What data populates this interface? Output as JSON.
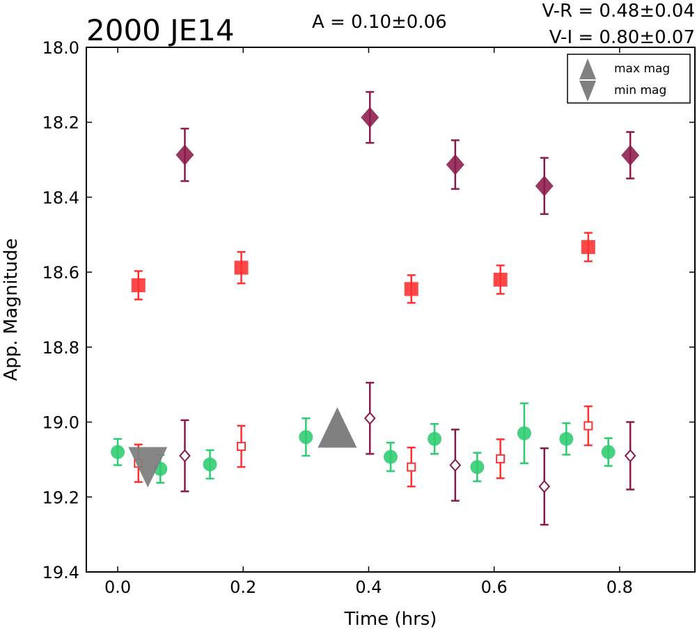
{
  "chart_data": {
    "type": "scatter",
    "title": "2000 JE14",
    "xlabel": "Time (hrs)",
    "ylabel": "App. Magnitude",
    "xlim": [
      -0.05,
      0.92
    ],
    "ylim": [
      19.4,
      18.0
    ],
    "y_inverted": true,
    "x_ticks": [
      "0.0",
      "0.2",
      "0.4",
      "0.6",
      "0.8"
    ],
    "y_ticks": [
      "18.0",
      "18.2",
      "18.4",
      "18.6",
      "18.8",
      "19.0",
      "19.2",
      "19.4"
    ],
    "annotations": {
      "amplitude": "A  = 0.10±0.06",
      "color_vr": "V-R = 0.48±0.04",
      "color_vi": "V-I  = 0.80±0.07"
    },
    "legend": {
      "position": "top-right",
      "entries": [
        "max mag",
        "min mag"
      ]
    },
    "series": [
      {
        "marker": "circle",
        "filled": true,
        "color": "#2ecc71",
        "points": [
          {
            "x": 0.0,
            "y": 19.08,
            "err": 0.035
          },
          {
            "x": 0.068,
            "y": 19.125,
            "err": 0.037
          },
          {
            "x": 0.147,
            "y": 19.113,
            "err": 0.038
          },
          {
            "x": 0.3,
            "y": 19.04,
            "err": 0.05
          },
          {
            "x": 0.435,
            "y": 19.093,
            "err": 0.038
          },
          {
            "x": 0.505,
            "y": 19.045,
            "err": 0.04
          },
          {
            "x": 0.573,
            "y": 19.12,
            "err": 0.038
          },
          {
            "x": 0.648,
            "y": 19.03,
            "err": 0.08
          },
          {
            "x": 0.715,
            "y": 19.045,
            "err": 0.042
          },
          {
            "x": 0.782,
            "y": 19.08,
            "err": 0.037
          }
        ]
      },
      {
        "marker": "square",
        "filled": true,
        "color": "#ff3030",
        "points": [
          {
            "x": 0.033,
            "y": 18.635,
            "err": 0.038
          },
          {
            "x": 0.197,
            "y": 18.588,
            "err": 0.042
          },
          {
            "x": 0.468,
            "y": 18.645,
            "err": 0.037
          },
          {
            "x": 0.61,
            "y": 18.62,
            "err": 0.038
          },
          {
            "x": 0.75,
            "y": 18.533,
            "err": 0.038
          }
        ]
      },
      {
        "marker": "square",
        "filled": false,
        "color": "#ff3030",
        "points": [
          {
            "x": 0.033,
            "y": 19.11,
            "err": 0.05
          },
          {
            "x": 0.197,
            "y": 19.065,
            "err": 0.055
          },
          {
            "x": 0.468,
            "y": 19.12,
            "err": 0.052
          },
          {
            "x": 0.61,
            "y": 19.098,
            "err": 0.052
          },
          {
            "x": 0.75,
            "y": 19.01,
            "err": 0.052
          }
        ]
      },
      {
        "marker": "diamond",
        "filled": true,
        "color": "#8b1a4b",
        "points": [
          {
            "x": 0.107,
            "y": 18.287,
            "err": 0.07
          },
          {
            "x": 0.402,
            "y": 18.187,
            "err": 0.068
          },
          {
            "x": 0.538,
            "y": 18.313,
            "err": 0.065
          },
          {
            "x": 0.68,
            "y": 18.37,
            "err": 0.075
          },
          {
            "x": 0.817,
            "y": 18.288,
            "err": 0.062
          }
        ]
      },
      {
        "marker": "diamond",
        "filled": false,
        "color": "#8b1a4b",
        "points": [
          {
            "x": 0.107,
            "y": 19.09,
            "err": 0.095
          },
          {
            "x": 0.402,
            "y": 18.99,
            "err": 0.095
          },
          {
            "x": 0.538,
            "y": 19.115,
            "err": 0.095
          },
          {
            "x": 0.68,
            "y": 19.172,
            "err": 0.102
          },
          {
            "x": 0.817,
            "y": 19.09,
            "err": 0.09
          }
        ]
      },
      {
        "marker": "triangle-up",
        "filled": true,
        "color": "#808080",
        "role": "max mag",
        "points": [
          {
            "x": 0.35,
            "y": 19.02
          }
        ]
      },
      {
        "marker": "triangle-down",
        "filled": true,
        "color": "#808080",
        "role": "min mag",
        "points": [
          {
            "x": 0.048,
            "y": 19.115
          }
        ]
      }
    ]
  }
}
